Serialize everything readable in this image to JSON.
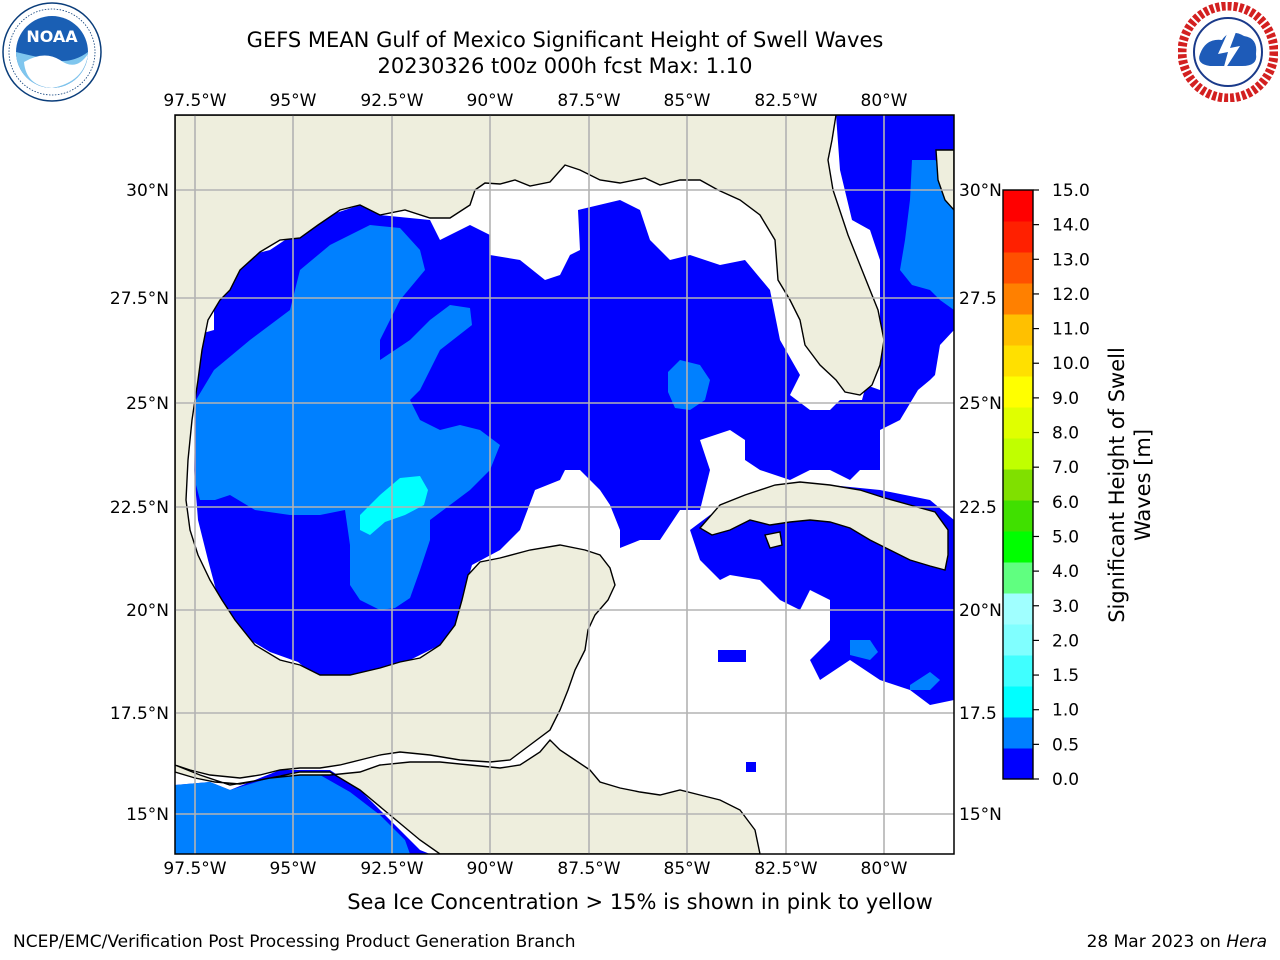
{
  "title": {
    "line1": "GEFS MEAN Gulf of Mexico Significant Height of Swell Waves",
    "line2": "20230326 t00z 000h fcst   Max: 1.10"
  },
  "logos": {
    "left": {
      "icon": "noaa-logo",
      "label": "NOAA",
      "ring_text": "NATIONAL OCEANIC AND ATMOSPHERIC ADMINISTRATION · U.S. DEPARTMENT OF COMMERCE"
    },
    "right": {
      "icon": "nws-logo",
      "ring_text": "NATIONAL WEATHER SERVICE"
    }
  },
  "map": {
    "lon_labels": [
      "97.5°W",
      "95°W",
      "92.5°W",
      "90°W",
      "87.5°W",
      "85°W",
      "82.5°W",
      "80°W"
    ],
    "lat_labels_left": [
      "30°N",
      "27.5°N",
      "25°N",
      "22.5°N",
      "20°N",
      "17.5°N",
      "15°N"
    ],
    "lat_labels_right": [
      "30°N",
      "27.5",
      "25°N",
      "22.5",
      "20°N",
      "17.5",
      "15°N"
    ],
    "colors": {
      "land": "#eeeedd",
      "coast": "#000000",
      "grid": "#b3b3b3",
      "ocean_missing": "#ffffff"
    }
  },
  "colorbar": {
    "label": "Significant Height of Swell Waves [m]",
    "label_line1": "Significant Height of Swell",
    "label_line2": "Waves [m]",
    "ticks": [
      "15.0",
      "14.0",
      "13.0",
      "12.0",
      "11.0",
      "10.0",
      "9.0",
      "8.0",
      "7.0",
      "6.0",
      "5.0",
      "4.0",
      "3.0",
      "2.0",
      "1.5",
      "1.0",
      "0.5",
      "0.0"
    ],
    "colors": [
      "#0000ff",
      "#0080ff",
      "#00ffff",
      "#40ffff",
      "#80ffff",
      "#a0ffff",
      "#60ff80",
      "#00ff00",
      "#40e000",
      "#80e000",
      "#c0ff00",
      "#e0ff00",
      "#ffff00",
      "#ffe000",
      "#ffc000",
      "#ff8000",
      "#ff5000",
      "#ff2000",
      "#ff0000"
    ]
  },
  "footnote": "Sea Ice Concentration > 15% is shown in pink to yellow",
  "credit_left": "NCEP/EMC/Verification Post Processing Product Generation Branch",
  "credit_right_date": "28 Mar 2023 on ",
  "credit_right_host": "Hera"
}
